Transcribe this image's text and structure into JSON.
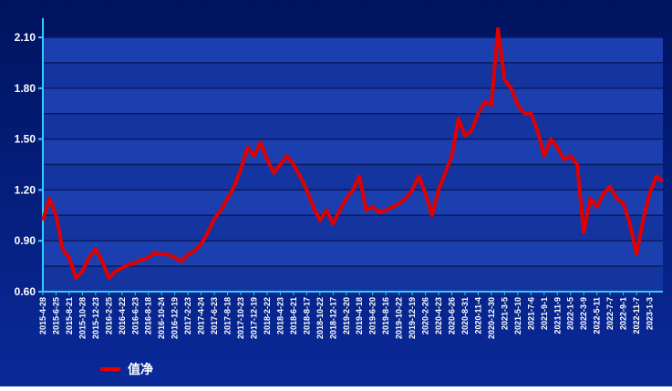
{
  "chart_data": {
    "type": "line",
    "categories": [
      "2015-4-28",
      null,
      "2015-6-25",
      null,
      "2015-8-21",
      null,
      "2015-10-28",
      null,
      "2015-12-23",
      null,
      "2016-2-25",
      null,
      "2016-4-22",
      null,
      "2016-6-23",
      null,
      "2016-8-18",
      null,
      "2016-10-24",
      null,
      "2016-12-19",
      null,
      "2017-2-23",
      null,
      "2017-4-24",
      null,
      "2017-6-23",
      null,
      "2017-8-18",
      null,
      "2017-10-23",
      null,
      "2017-12-19",
      null,
      "2018-2-22",
      null,
      "2018-4-23",
      null,
      "2018-6-21",
      null,
      "2018-8-17",
      null,
      "2018-10-22",
      null,
      "2018-12-17",
      null,
      "2019-2-20",
      null,
      "2019-4-18",
      null,
      "2019-6-20",
      null,
      "2019-8-16",
      null,
      "2019-10-22",
      null,
      "2019-12-19",
      null,
      "2020-2-26",
      null,
      "2020-4-23",
      null,
      "2020-6-26",
      null,
      "2020-8-31",
      null,
      "2020-11-4",
      null,
      "2020-12-30",
      null,
      "2021-3-5",
      null,
      "2021-5-10",
      null,
      "2021-7-6",
      null,
      "2021-9-1",
      null,
      "2021-11-9",
      null,
      "2022-1-5",
      null,
      "2022-3-9",
      null,
      "2022-5-11",
      null,
      "2022-7-7",
      null,
      "2022-9-1",
      null,
      "2022-11-7",
      null,
      "2023-1-3",
      null,
      null
    ],
    "series": [
      {
        "name": "值净",
        "color": "#e00000",
        "values": [
          1.02,
          1.15,
          1.05,
          0.85,
          0.8,
          0.68,
          0.72,
          0.8,
          0.85,
          0.78,
          0.68,
          0.72,
          0.74,
          0.76,
          0.77,
          0.79,
          0.8,
          0.83,
          0.82,
          0.82,
          0.8,
          0.78,
          0.82,
          0.84,
          0.88,
          0.95,
          1.03,
          1.08,
          1.15,
          1.22,
          1.32,
          1.45,
          1.4,
          1.48,
          1.38,
          1.3,
          1.35,
          1.4,
          1.35,
          1.28,
          1.2,
          1.1,
          1.02,
          1.08,
          1.0,
          1.08,
          1.15,
          1.2,
          1.28,
          1.08,
          1.1,
          1.07,
          1.08,
          1.1,
          1.12,
          1.15,
          1.2,
          1.28,
          1.18,
          1.05,
          1.2,
          1.3,
          1.4,
          1.62,
          1.52,
          1.55,
          1.65,
          1.72,
          1.7,
          2.15,
          1.85,
          1.8,
          1.7,
          1.65,
          1.65,
          1.55,
          1.4,
          1.5,
          1.45,
          1.38,
          1.4,
          1.35,
          0.95,
          1.15,
          1.1,
          1.18,
          1.22,
          1.15,
          1.12,
          1.0,
          0.82,
          1.02,
          1.18,
          1.28,
          1.25
        ]
      }
    ],
    "ylim": [
      0.6,
      2.1
    ],
    "yticks": [
      {
        "value": 0.6,
        "label": "0.60"
      },
      {
        "value": 0.9,
        "label": "0.90"
      },
      {
        "value": 1.2,
        "label": "1.20"
      },
      {
        "value": 1.5,
        "label": "1.50"
      },
      {
        "value": 1.8,
        "label": "1.80"
      },
      {
        "value": 2.1,
        "label": "2.10"
      }
    ],
    "minor_yticks": [
      0.75,
      1.05,
      1.35,
      1.65,
      1.95
    ],
    "grid": true,
    "legend": "bottom-left"
  }
}
